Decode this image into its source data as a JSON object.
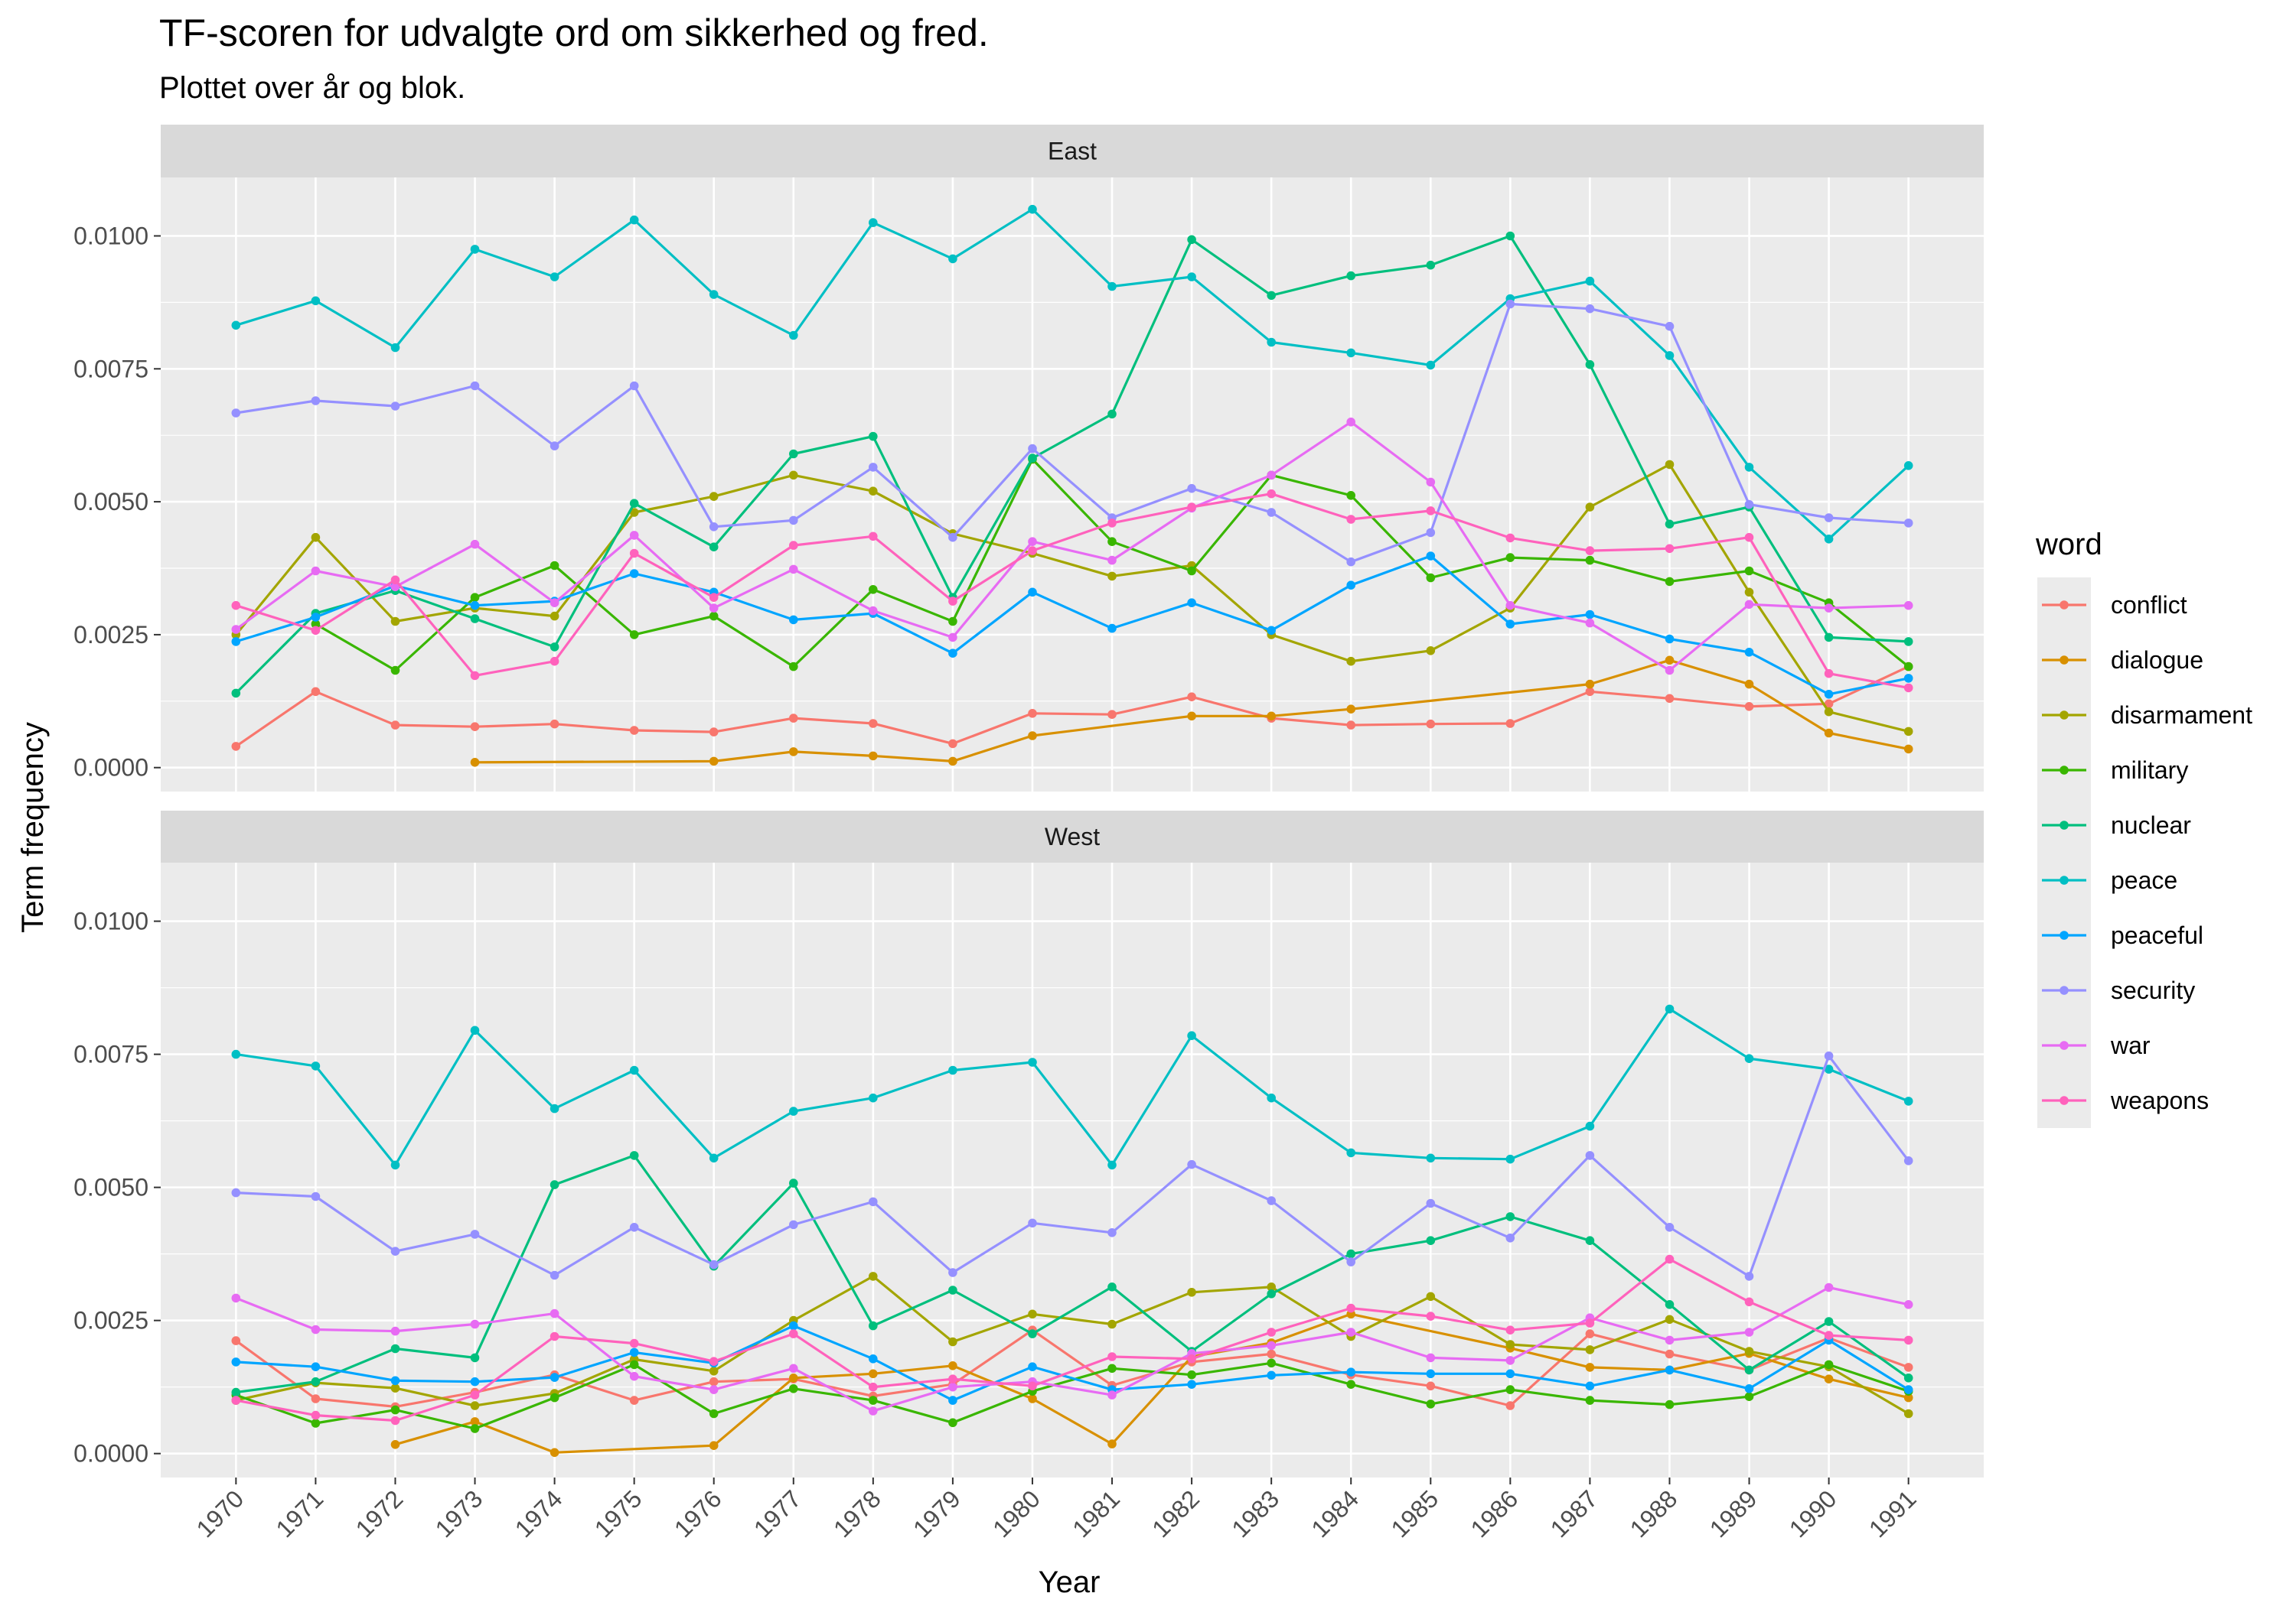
{
  "chart_data": {
    "type": "line",
    "title": "TF-scoren for udvalgte ord om sikkerhed og fred.",
    "subtitle": "Plottet over år og blok.",
    "xlabel": "Year",
    "ylabel": "Term frequency",
    "ylim": [
      -0.00045,
      0.0111
    ],
    "y_ticks": [
      0.0,
      0.0025,
      0.005,
      0.0075,
      0.01
    ],
    "y_tick_labels": [
      "0.0000",
      "0.0025",
      "0.0050",
      "0.0075",
      "0.0100"
    ],
    "x": [
      1970,
      1971,
      1972,
      1973,
      1974,
      1975,
      1976,
      1977,
      1978,
      1979,
      1980,
      1981,
      1982,
      1983,
      1984,
      1985,
      1986,
      1987,
      1988,
      1989,
      1990,
      1991
    ],
    "grid": true,
    "legend": {
      "title": "word",
      "position": "right"
    },
    "panels": [
      {
        "name": "East",
        "series": [
          {
            "name": "conflict",
            "color": "#F8766D",
            "values": [
              0.0004,
              0.00143,
              0.0008,
              0.00077,
              0.00082,
              0.0007,
              0.00067,
              0.00093,
              0.00083,
              0.00045,
              0.00102,
              0.001,
              0.00133,
              0.00093,
              0.0008,
              0.00082,
              0.00083,
              0.00143,
              0.0013,
              0.00115,
              0.0012,
              0.0019
            ]
          },
          {
            "name": "dialogue",
            "color": "#D89000",
            "values": [
              null,
              null,
              null,
              0.0001,
              null,
              null,
              0.00012,
              0.0003,
              0.00022,
              0.00012,
              0.0006,
              null,
              0.00097,
              0.00097,
              0.0011,
              null,
              null,
              0.00157,
              0.00202,
              0.00157,
              0.00065,
              0.00035
            ]
          },
          {
            "name": "disarmament",
            "color": "#A3A500",
            "values": [
              0.0025,
              0.00433,
              0.00275,
              0.003,
              0.00285,
              0.0048,
              0.0051,
              0.0055,
              0.0052,
              0.0044,
              0.00403,
              0.0036,
              0.0038,
              0.0025,
              0.002,
              0.0022,
              0.003,
              0.0049,
              0.0057,
              0.0033,
              0.00105,
              0.00068
            ]
          },
          {
            "name": "military",
            "color": "#39B600",
            "values": [
              null,
              0.0027,
              0.00183,
              0.0032,
              0.0038,
              0.0025,
              0.00285,
              0.0019,
              0.00335,
              0.00275,
              0.0058,
              0.00425,
              0.0037,
              0.0055,
              0.00512,
              0.00357,
              0.00395,
              0.0039,
              0.0035,
              0.0037,
              0.0031,
              0.0019
            ]
          },
          {
            "name": "nuclear",
            "color": "#00BF7D",
            "values": [
              0.0014,
              0.0029,
              0.00333,
              0.0028,
              0.00227,
              0.00497,
              0.00415,
              0.0059,
              0.00623,
              0.0032,
              0.00582,
              0.00665,
              0.00993,
              0.00888,
              0.00925,
              0.00945,
              0.01,
              0.00758,
              0.00458,
              0.0049,
              0.00245,
              0.00237
            ]
          },
          {
            "name": "peace",
            "color": "#00BFC4",
            "values": [
              0.00832,
              0.00878,
              0.0079,
              0.00975,
              0.00923,
              0.0103,
              0.0089,
              0.00813,
              0.01025,
              0.00957,
              0.0105,
              0.00905,
              0.00923,
              0.008,
              0.0078,
              0.00757,
              0.00882,
              0.00915,
              0.00775,
              0.00565,
              0.0043,
              0.00568
            ]
          },
          {
            "name": "peaceful",
            "color": "#00A5FF",
            "values": [
              0.00237,
              0.00283,
              0.00342,
              0.00305,
              0.00313,
              0.00365,
              0.0033,
              0.00278,
              0.0029,
              0.00215,
              0.0033,
              0.00262,
              0.0031,
              0.00258,
              0.00343,
              0.00398,
              0.0027,
              0.00288,
              0.00242,
              0.00217,
              0.00138,
              0.00168
            ]
          },
          {
            "name": "security",
            "color": "#9590FF",
            "values": [
              0.00667,
              0.0069,
              0.0068,
              0.00718,
              0.00605,
              0.00718,
              0.00453,
              0.00465,
              0.00565,
              0.00433,
              0.006,
              0.0047,
              0.00525,
              0.0048,
              0.00387,
              0.00442,
              0.00872,
              0.00863,
              0.0083,
              0.00495,
              0.0047,
              0.0046
            ]
          },
          {
            "name": "war",
            "color": "#E76BF3",
            "values": [
              0.0026,
              0.0037,
              0.0034,
              0.0042,
              0.0031,
              0.00437,
              0.003,
              0.00373,
              0.00295,
              0.00245,
              0.00425,
              0.0039,
              0.00488,
              0.0055,
              0.0065,
              0.00537,
              0.00305,
              0.00272,
              0.00183,
              0.00307,
              0.003,
              0.00305
            ]
          },
          {
            "name": "weapons",
            "color": "#FF62BC",
            "values": [
              0.00305,
              0.00258,
              0.00353,
              0.00173,
              0.002,
              0.00403,
              0.0032,
              0.00418,
              0.00435,
              0.00313,
              0.00408,
              0.0046,
              0.0049,
              0.00515,
              0.00467,
              0.00483,
              0.00432,
              0.00408,
              0.00412,
              0.00433,
              0.00177,
              0.0015
            ]
          }
        ]
      },
      {
        "name": "West",
        "series": [
          {
            "name": "conflict",
            "color": "#F8766D",
            "values": [
              0.00212,
              0.00103,
              0.00088,
              0.00115,
              0.00148,
              0.001,
              0.00135,
              0.0014,
              0.00108,
              0.0013,
              0.00232,
              0.00128,
              0.00172,
              0.00187,
              0.00148,
              0.00127,
              0.0009,
              0.00225,
              0.00187,
              0.00157,
              0.00217,
              0.00162
            ]
          },
          {
            "name": "dialogue",
            "color": "#D89000",
            "values": [
              null,
              null,
              0.00017,
              0.0006,
              2e-05,
              null,
              0.00015,
              0.00142,
              0.0015,
              0.00165,
              0.00103,
              0.00018,
              0.00182,
              0.00208,
              0.00262,
              null,
              0.00198,
              0.00162,
              0.00157,
              0.00188,
              0.0014,
              0.00105
            ]
          },
          {
            "name": "disarmament",
            "color": "#A3A500",
            "values": [
              0.001,
              0.00133,
              0.00123,
              0.0009,
              0.00113,
              0.00177,
              0.00155,
              0.0025,
              0.00333,
              0.0021,
              0.00262,
              0.00243,
              0.00303,
              0.00313,
              0.0022,
              0.00295,
              0.00205,
              0.00195,
              0.00252,
              0.00192,
              0.00163,
              0.00075
            ]
          },
          {
            "name": "military",
            "color": "#39B600",
            "values": [
              0.0011,
              0.00057,
              0.00082,
              0.00047,
              0.00105,
              0.00167,
              0.00075,
              0.00122,
              0.001,
              0.00058,
              0.00117,
              0.0016,
              0.00148,
              0.0017,
              0.0013,
              0.00093,
              0.0012,
              0.001,
              0.00092,
              0.00107,
              0.00167,
              0.00117
            ]
          },
          {
            "name": "nuclear",
            "color": "#00BF7D",
            "values": [
              0.00115,
              0.00135,
              0.00197,
              0.0018,
              0.00505,
              0.0056,
              0.00352,
              0.00508,
              0.0024,
              0.00307,
              0.00225,
              0.00313,
              0.00192,
              0.003,
              0.00375,
              0.004,
              0.00445,
              0.004,
              0.0028,
              0.00157,
              0.00248,
              0.00142
            ]
          },
          {
            "name": "peace",
            "color": "#00BFC4",
            "values": [
              0.0075,
              0.00728,
              0.00542,
              0.00795,
              0.00648,
              0.0072,
              0.00555,
              0.00643,
              0.00668,
              0.0072,
              0.00735,
              0.00542,
              0.00785,
              0.00668,
              0.00565,
              0.00555,
              0.00553,
              0.00615,
              0.00835,
              0.00742,
              0.00722,
              0.00662
            ]
          },
          {
            "name": "peaceful",
            "color": "#00A5FF",
            "values": [
              0.00172,
              0.00163,
              0.00137,
              0.00135,
              0.00143,
              0.0019,
              0.0017,
              0.0024,
              0.00178,
              0.001,
              0.00163,
              0.0012,
              0.0013,
              0.00147,
              0.00153,
              0.0015,
              0.0015,
              0.00127,
              0.00157,
              0.00122,
              0.00213,
              0.0012
            ]
          },
          {
            "name": "security",
            "color": "#9590FF",
            "values": [
              0.0049,
              0.00483,
              0.0038,
              0.00412,
              0.00335,
              0.00425,
              0.00355,
              0.0043,
              0.00473,
              0.0034,
              0.00433,
              0.00415,
              0.00543,
              0.00475,
              0.0036,
              0.0047,
              0.00405,
              0.0056,
              0.00425,
              0.00333,
              0.00747,
              0.0055
            ]
          },
          {
            "name": "war",
            "color": "#E76BF3",
            "values": [
              0.00292,
              0.00233,
              0.0023,
              0.00243,
              0.00263,
              0.00145,
              0.0012,
              0.0016,
              0.0008,
              0.00125,
              0.00135,
              0.0011,
              0.00188,
              0.00203,
              0.00228,
              0.0018,
              0.00175,
              0.00255,
              0.00213,
              0.00228,
              0.00312,
              0.0028
            ]
          },
          {
            "name": "weapons",
            "color": "#FF62BC",
            "values": [
              0.001,
              0.00072,
              0.00062,
              0.0011,
              0.0022,
              0.00207,
              0.00173,
              0.00225,
              0.00125,
              0.0014,
              0.00127,
              0.00182,
              0.00178,
              0.00228,
              0.00273,
              0.00258,
              0.00232,
              0.00245,
              0.00365,
              0.00285,
              0.00222,
              0.00213
            ]
          }
        ]
      }
    ]
  }
}
